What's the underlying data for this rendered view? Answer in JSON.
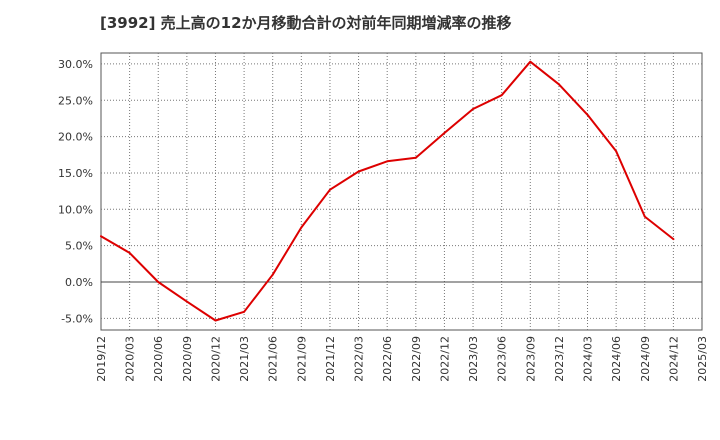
{
  "chart_data": {
    "type": "line",
    "title": "[3992]  売上高の12か月移動合計の対前年同期増減率の推移",
    "xlabel": "",
    "ylabel": "",
    "categories": [
      "2019/12",
      "2020/03",
      "2020/06",
      "2020/09",
      "2020/12",
      "2021/03",
      "2021/06",
      "2021/09",
      "2021/12",
      "2022/03",
      "2022/06",
      "2022/09",
      "2022/12",
      "2023/03",
      "2023/06",
      "2023/09",
      "2023/12",
      "2024/03",
      "2024/06",
      "2024/09",
      "2024/12",
      "2025/03"
    ],
    "series": [
      {
        "name": "増減率",
        "color": "#dd0000",
        "values": [
          6.3,
          4.0,
          0.0,
          -2.7,
          -5.3,
          -4.1,
          1.0,
          7.5,
          12.7,
          15.2,
          16.6,
          17.1,
          20.5,
          23.8,
          25.7,
          30.3,
          27.2,
          23.0,
          18.0,
          9.0,
          5.9,
          null
        ]
      }
    ],
    "ylim": [
      -6.6,
      31.5
    ],
    "yticks": [
      -5,
      0,
      5,
      10,
      15,
      20,
      25,
      30
    ],
    "ytick_labels": [
      "-5.0%",
      "0.0%",
      "5.0%",
      "10.0%",
      "15.0%",
      "20.0%",
      "25.0%",
      "30.0%"
    ],
    "grid": true
  }
}
